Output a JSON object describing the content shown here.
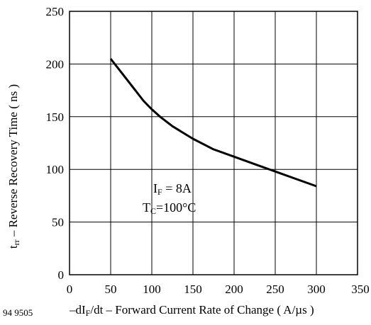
{
  "figure_code": "94 9505",
  "chart_data": {
    "type": "line",
    "ylabel_sym_main": "t",
    "ylabel_sym_sub": "rr",
    "ylabel_text": " – Reverse Recovery Time ( ns )",
    "xlabel_pre": "–dI",
    "xlabel_sub": "F",
    "xlabel_post": "/dt – Forward Current Rate of Change ( A/µs )",
    "xlim": [
      0,
      350
    ],
    "ylim": [
      0,
      250
    ],
    "xticks": [
      0,
      50,
      100,
      150,
      200,
      250,
      300,
      350
    ],
    "yticks": [
      0,
      50,
      100,
      150,
      200,
      250
    ],
    "grid": true,
    "annotation": {
      "line1_main": "I",
      "line1_sub": "F",
      "line1_rest": " = 8A",
      "line2_main": "T",
      "line2_sub": "C",
      "line2_rest": "=100°C"
    },
    "series": [
      {
        "x": [
          50,
          60,
          70,
          80,
          90,
          100,
          110,
          125,
          150,
          175,
          200,
          225,
          250,
          275,
          300
        ],
        "values": [
          205,
          195,
          185,
          175,
          165,
          157,
          150,
          141,
          129,
          119,
          112,
          105,
          98,
          91,
          84
        ]
      }
    ]
  }
}
